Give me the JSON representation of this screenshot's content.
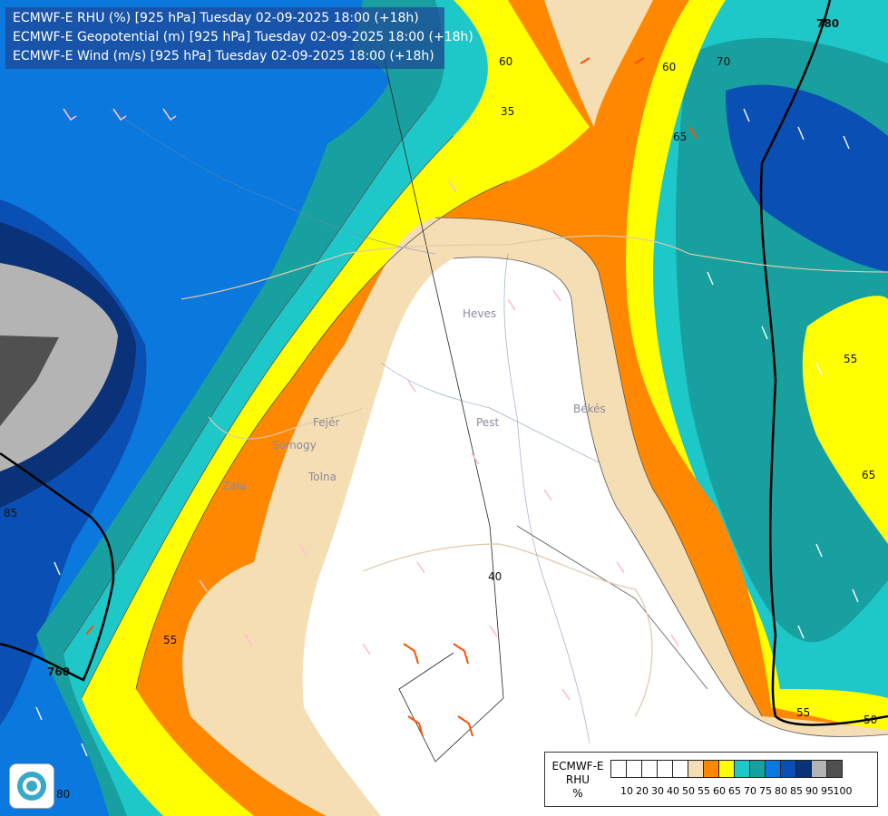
{
  "header": {
    "line1": "ECMWF-E RHU (%) [925 hPa] Tuesday 02-09-2025 18:00 (+18h)",
    "line2": "ECMWF-E Geopotential (m) [925 hPa] Tuesday 02-09-2025 18:00 (+18h)",
    "line3": "ECMWF-E Wind (m/s) [925 hPa] Tuesday 02-09-2025 18:00 (+18h)"
  },
  "legend": {
    "title_line1": "ECMWF-E",
    "title_line2": "RHU",
    "title_line3": "%",
    "classes": [
      {
        "color": "#ffffff"
      },
      {
        "color": "#ffffff"
      },
      {
        "color": "#ffffff"
      },
      {
        "color": "#ffffff"
      },
      {
        "color": "#ffffff"
      },
      {
        "color": "#f5deb3"
      },
      {
        "color": "#ff8800"
      },
      {
        "color": "#ffff00"
      },
      {
        "color": "#1ec8c8"
      },
      {
        "color": "#18a0a0"
      },
      {
        "color": "#0a78dc"
      },
      {
        "color": "#0a50b4"
      },
      {
        "color": "#0a3278"
      },
      {
        "color": "#b4b4b4"
      },
      {
        "color": "#505050"
      }
    ],
    "tick_labels": [
      "10",
      "20",
      "30",
      "40",
      "50",
      "55",
      "60",
      "65",
      "70",
      "75",
      "80",
      "85",
      "90",
      "95",
      "100"
    ]
  },
  "contour_labels": {
    "rhu": [
      "60",
      "35",
      "60",
      "65",
      "70",
      "65",
      "55",
      "40",
      "55",
      "85",
      "55",
      "50",
      "80"
    ],
    "geopotential": [
      "780",
      "760"
    ]
  },
  "places": [
    "Heves",
    "Pest",
    "Békés",
    "Fejér",
    "Tolna",
    "Somogy",
    "Zala"
  ]
}
